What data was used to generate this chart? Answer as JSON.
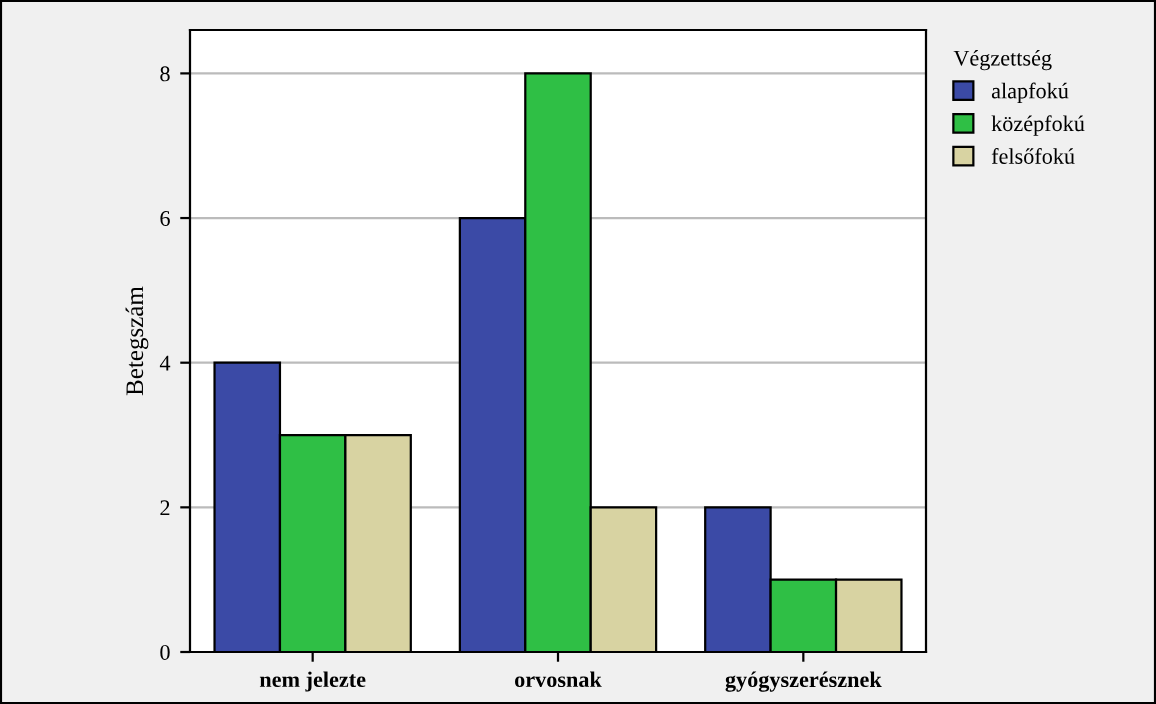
{
  "chart_data": {
    "type": "bar",
    "ylabel": "Betegszám",
    "legend_title": "Végzettség",
    "categories": [
      "nem jelezte",
      "orvosnak",
      "gyógyszerésznek"
    ],
    "series": [
      {
        "name": "alapfokú",
        "color": "#3b4aa6",
        "values": [
          4,
          6,
          2
        ]
      },
      {
        "name": "középfokú",
        "color": "#2fbf45",
        "values": [
          3,
          8,
          1
        ]
      },
      {
        "name": "felsőfokú",
        "color": "#d8d3a2",
        "values": [
          3,
          2,
          1
        ]
      }
    ],
    "ylim": [
      0,
      8.6
    ],
    "yticks": [
      0,
      2,
      4,
      6,
      8
    ],
    "grid": "y",
    "legend": "top right"
  }
}
